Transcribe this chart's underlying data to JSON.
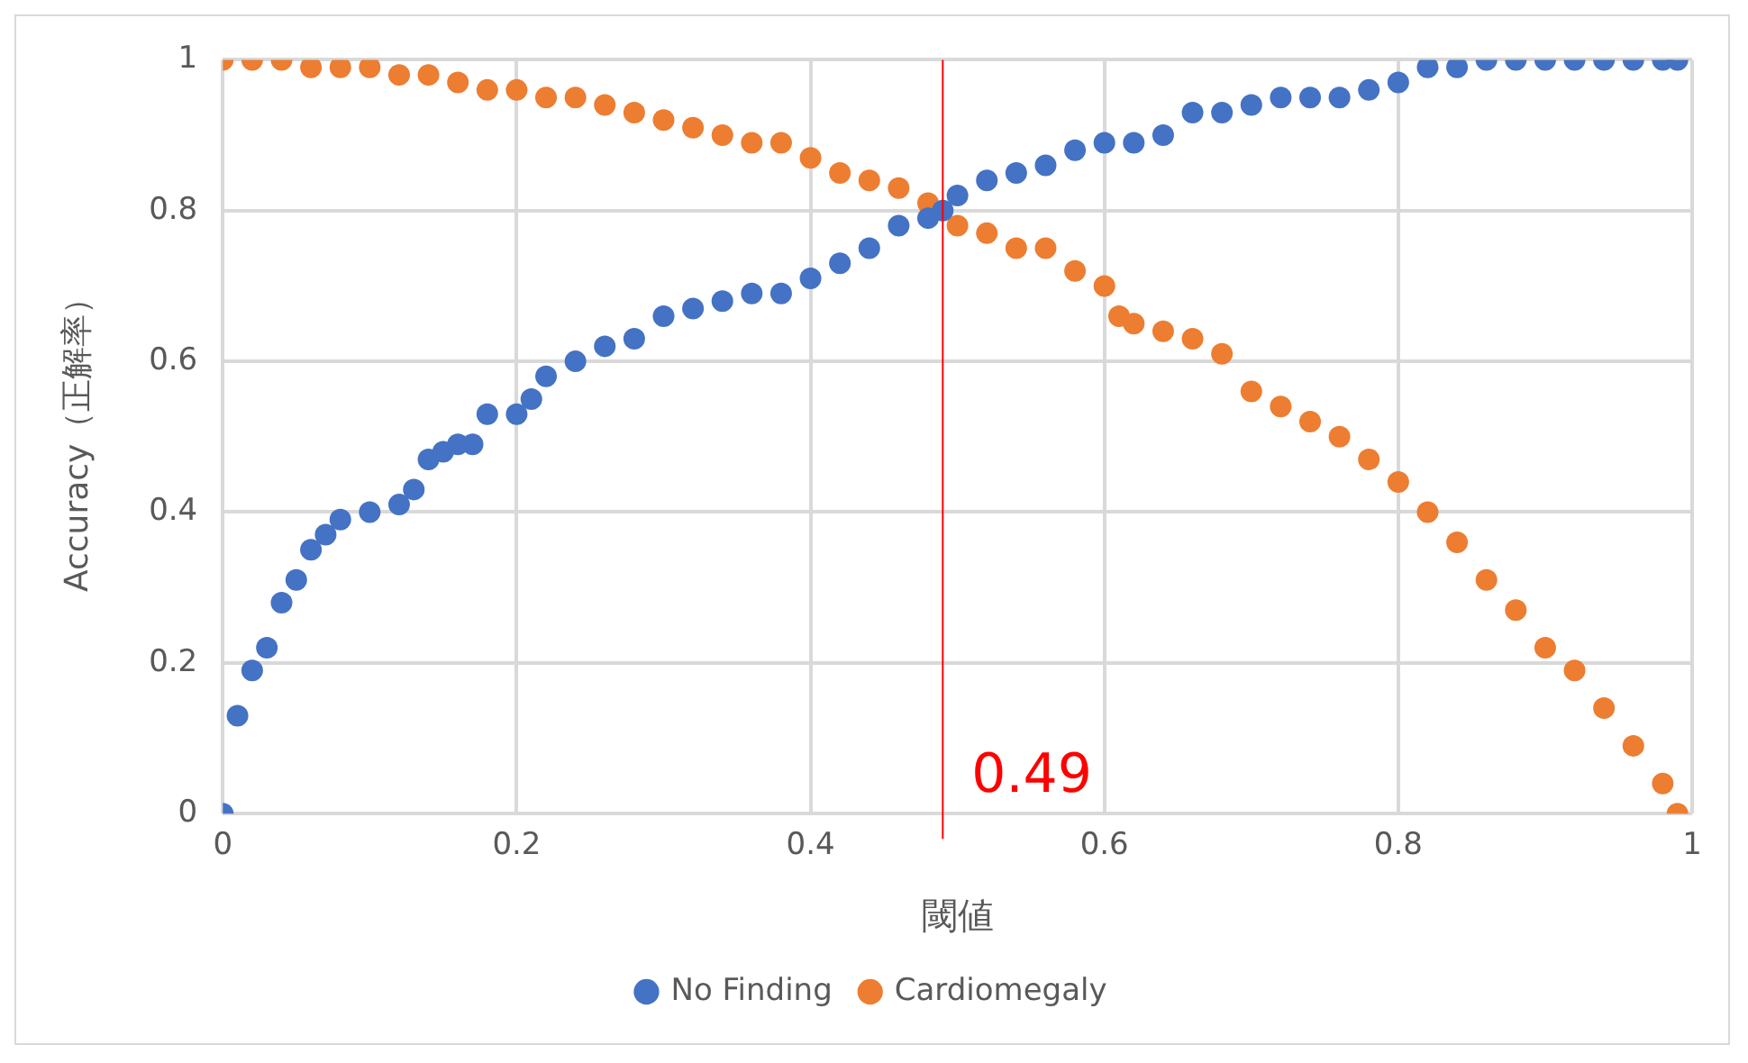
{
  "chart_data": {
    "type": "scatter",
    "xlabel": "閾値",
    "ylabel": "Accuracy（正解率）",
    "xlim": [
      0,
      1
    ],
    "xticks": [
      0,
      0.2,
      0.4,
      0.6,
      0.8,
      1
    ],
    "ylim": [
      0,
      1
    ],
    "yticks": [
      0,
      0.2,
      0.4,
      0.6,
      0.8,
      1
    ],
    "grid": true,
    "legend": "bottom",
    "marker": "circle",
    "ref_lines": [
      {
        "axis": "x",
        "value": 0.49,
        "label": "0.49",
        "color": "#ff0000"
      }
    ],
    "series": [
      {
        "name": "No Finding",
        "color": "#4472c4",
        "x": [
          0,
          0.01,
          0.02,
          0.03,
          0.04,
          0.05,
          0.06,
          0.07,
          0.08,
          0.1,
          0.12,
          0.13,
          0.14,
          0.15,
          0.16,
          0.17,
          0.18,
          0.2,
          0.21,
          0.22,
          0.24,
          0.26,
          0.28,
          0.3,
          0.32,
          0.34,
          0.36,
          0.38,
          0.4,
          0.42,
          0.44,
          0.46,
          0.48,
          0.49,
          0.5,
          0.52,
          0.54,
          0.56,
          0.58,
          0.6,
          0.62,
          0.64,
          0.66,
          0.68,
          0.7,
          0.72,
          0.74,
          0.76,
          0.78,
          0.8,
          0.82,
          0.84,
          0.86,
          0.88,
          0.9,
          0.92,
          0.94,
          0.96,
          0.98,
          0.99
        ],
        "values": [
          0,
          0.13,
          0.19,
          0.22,
          0.28,
          0.31,
          0.35,
          0.37,
          0.39,
          0.4,
          0.41,
          0.43,
          0.47,
          0.48,
          0.49,
          0.49,
          0.53,
          0.53,
          0.55,
          0.58,
          0.6,
          0.62,
          0.63,
          0.66,
          0.67,
          0.68,
          0.69,
          0.69,
          0.71,
          0.73,
          0.75,
          0.78,
          0.79,
          0.8,
          0.82,
          0.84,
          0.85,
          0.86,
          0.88,
          0.89,
          0.89,
          0.9,
          0.93,
          0.93,
          0.94,
          0.95,
          0.95,
          0.95,
          0.96,
          0.97,
          0.99,
          0.99,
          1,
          1,
          1,
          1,
          1,
          1,
          1,
          1
        ]
      },
      {
        "name": "Cardiomegaly",
        "color": "#ed7d31",
        "x": [
          0,
          0.02,
          0.04,
          0.06,
          0.08,
          0.1,
          0.12,
          0.14,
          0.16,
          0.18,
          0.2,
          0.22,
          0.24,
          0.26,
          0.28,
          0.3,
          0.32,
          0.34,
          0.36,
          0.38,
          0.4,
          0.42,
          0.44,
          0.46,
          0.48,
          0.5,
          0.52,
          0.54,
          0.56,
          0.58,
          0.6,
          0.61,
          0.62,
          0.64,
          0.66,
          0.68,
          0.7,
          0.72,
          0.74,
          0.76,
          0.78,
          0.8,
          0.82,
          0.84,
          0.86,
          0.88,
          0.9,
          0.92,
          0.94,
          0.96,
          0.98,
          0.99
        ],
        "values": [
          1,
          1,
          1,
          0.99,
          0.99,
          0.99,
          0.98,
          0.98,
          0.97,
          0.96,
          0.96,
          0.95,
          0.95,
          0.94,
          0.93,
          0.92,
          0.91,
          0.9,
          0.89,
          0.89,
          0.87,
          0.85,
          0.84,
          0.83,
          0.81,
          0.78,
          0.77,
          0.75,
          0.75,
          0.72,
          0.7,
          0.66,
          0.65,
          0.64,
          0.63,
          0.61,
          0.56,
          0.54,
          0.52,
          0.5,
          0.47,
          0.44,
          0.4,
          0.36,
          0.31,
          0.27,
          0.22,
          0.19,
          0.14,
          0.09,
          0.04,
          0
        ]
      }
    ]
  }
}
